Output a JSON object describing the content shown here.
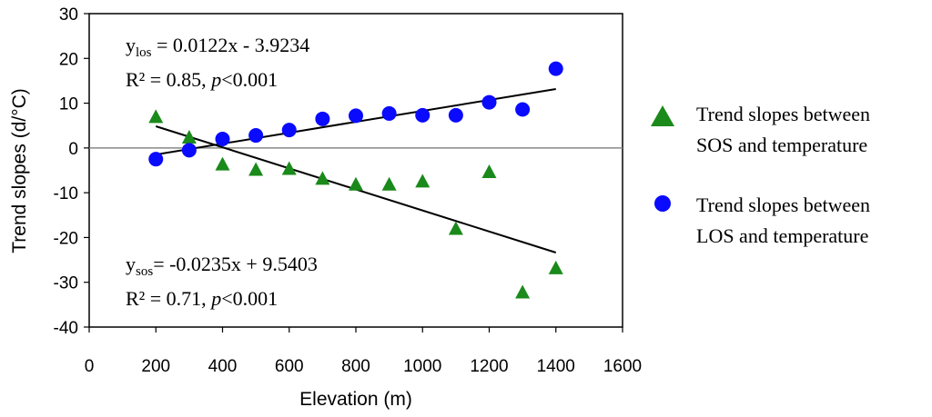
{
  "chart_data": {
    "type": "scatter",
    "title": "",
    "xlabel": "Elevation (m)",
    "ylabel": "Trend slopes (d/°C)",
    "xlim": [
      0,
      1600
    ],
    "ylim": [
      -40,
      30
    ],
    "xticks": [
      "0",
      "200",
      "400",
      "600",
      "800",
      "1000",
      "1200",
      "1400",
      "1600"
    ],
    "yticks": [
      "30",
      "20",
      "10",
      "0",
      "-10",
      "-20",
      "-30",
      "-40"
    ],
    "series": [
      {
        "name": "Trend slopes between SOS and temperature",
        "legend_line1": "Trend slopes between",
        "legend_line2": "SOS and temperature",
        "marker": "triangle",
        "color": "#1a8a1a",
        "x": [
          200,
          300,
          400,
          500,
          600,
          700,
          800,
          900,
          1000,
          1100,
          1200,
          1300,
          1400
        ],
        "y": [
          6.8,
          2.2,
          -3.8,
          -5.0,
          -4.8,
          -7.0,
          -8.3,
          -8.3,
          -7.6,
          -18.2,
          -5.5,
          -32.4,
          -27.0
        ],
        "trend": {
          "slope": -0.0235,
          "intercept": 9.5403
        },
        "equation_y": "y",
        "equation_sub": "sos",
        "equation_rest": "= -0.0235x + 9.5403",
        "r2_text": "R² = 0.71, ",
        "p_italic": "p",
        "p_rest": "<0.001"
      },
      {
        "name": "Trend slopes between LOS and temperature",
        "legend_line1": "Trend slopes between",
        "legend_line2": "LOS and temperature",
        "marker": "circle",
        "color": "#0a0aff",
        "x": [
          200,
          300,
          400,
          500,
          600,
          700,
          800,
          900,
          1000,
          1100,
          1200,
          1300,
          1400
        ],
        "y": [
          -2.5,
          -0.5,
          2.0,
          2.8,
          4.0,
          6.5,
          7.2,
          7.7,
          7.3,
          7.3,
          10.2,
          8.6,
          17.7
        ],
        "trend": {
          "slope": 0.0122,
          "intercept": -3.9234
        },
        "equation_y": "y",
        "equation_sub": "los",
        "equation_rest": " = 0.0122x - 3.9234",
        "r2_text": "R² = 0.85, ",
        "p_italic": "p",
        "p_rest": "<0.001"
      }
    ]
  }
}
